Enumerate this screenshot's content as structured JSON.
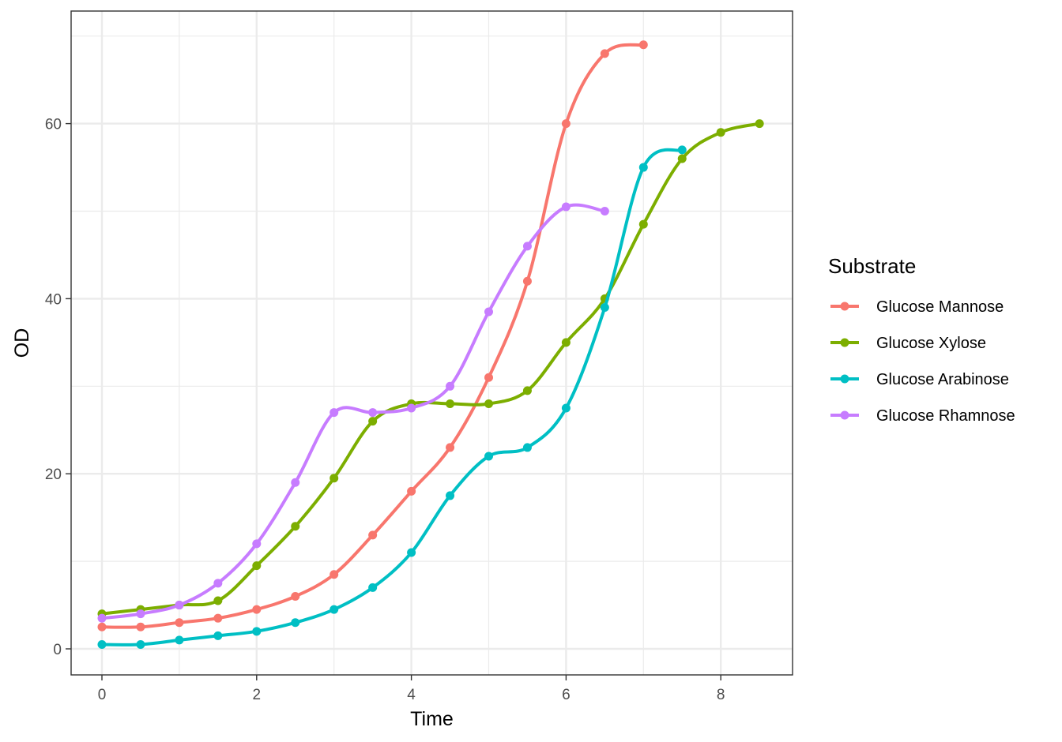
{
  "chart_data": {
    "type": "line",
    "xlabel": "Time",
    "ylabel": "OD",
    "xlim": [
      -0.4,
      8.9
    ],
    "ylim": [
      -3,
      73
    ],
    "x_ticks": [
      0,
      2,
      4,
      6,
      8
    ],
    "y_ticks": [
      0,
      20,
      40,
      60
    ],
    "x_tick_labels": [
      "0",
      "2",
      "4",
      "6",
      "8"
    ],
    "y_tick_labels": [
      "0",
      "20",
      "40",
      "60"
    ],
    "grid": true,
    "legend": {
      "title": "Substrate",
      "placement": "right"
    },
    "series": [
      {
        "name": "Glucose Mannose",
        "color": "#F8766D",
        "x": [
          0,
          0.5,
          1,
          1.5,
          2,
          2.5,
          3,
          3.5,
          4,
          4.5,
          5,
          5.5,
          6,
          6.5,
          7
        ],
        "y": [
          2.5,
          2.5,
          3,
          3.5,
          4.5,
          6,
          8.5,
          13,
          18,
          23,
          31,
          42,
          60,
          68,
          69
        ]
      },
      {
        "name": "Glucose Xylose",
        "color": "#7CAE00",
        "x": [
          0,
          0.5,
          1,
          1.5,
          2,
          2.5,
          3,
          3.5,
          4,
          4.5,
          5,
          5.5,
          6,
          6.5,
          7,
          7.5,
          8,
          8.5
        ],
        "y": [
          4,
          4.5,
          5,
          5.5,
          9.5,
          14,
          19.5,
          26,
          28,
          28,
          28,
          29.5,
          35,
          40,
          48.5,
          56,
          59,
          60
        ]
      },
      {
        "name": "Glucose Arabinose",
        "color": "#00BFC4",
        "x": [
          0,
          0.5,
          1,
          1.5,
          2,
          2.5,
          3,
          3.5,
          4,
          4.5,
          5,
          5.5,
          6,
          6.5,
          7,
          7.5
        ],
        "y": [
          0.5,
          0.5,
          1,
          1.5,
          2,
          3,
          4.5,
          7,
          11,
          17.5,
          22,
          23,
          27.5,
          39,
          55,
          57
        ]
      },
      {
        "name": "Glucose Rhamnose",
        "color": "#C77CFF",
        "x": [
          0,
          0.5,
          1,
          1.5,
          2,
          2.5,
          3,
          3.5,
          4,
          4.5,
          5,
          5.5,
          6,
          6.5
        ],
        "y": [
          3.5,
          4,
          5,
          7.5,
          12,
          19,
          27,
          27,
          27.5,
          30,
          38.5,
          46,
          50.5,
          50
        ]
      }
    ]
  }
}
